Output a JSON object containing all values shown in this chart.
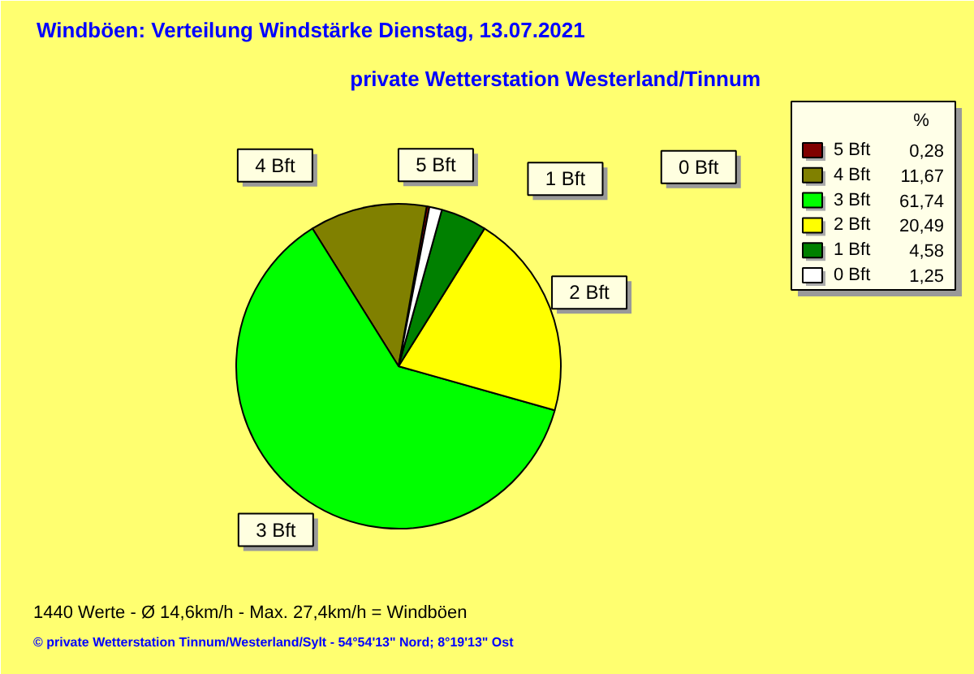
{
  "chart_data": {
    "type": "pie",
    "title": "Windböen: Verteilung Windstärke  Dienstag, 13.07.2021",
    "subtitle": "private Wetterstation Westerland/Tinnum",
    "categories": [
      "5 Bft",
      "4 Bft",
      "3 Bft",
      "2 Bft",
      "1 Bft",
      "0 Bft"
    ],
    "values": [
      0.28,
      11.67,
      61.74,
      20.49,
      4.58,
      1.25
    ],
    "value_labels": [
      "0,28",
      "11,67",
      "61,74",
      "20,49",
      "4,58",
      "1,25"
    ],
    "colors": [
      "#800000",
      "#808000",
      "#00ff00",
      "#ffff00",
      "#008000",
      "#ffffff"
    ],
    "legend": "top right",
    "legend_title": "%",
    "annotations": [
      "1440 Werte   -   Ø 14,6km/h  -  Max. 27,4km/h = Windböen",
      "© private Wetterstation Tinnum/Westerland/Sylt  -  54°54'13\" Nord; 8°19'13\" Ost"
    ]
  }
}
